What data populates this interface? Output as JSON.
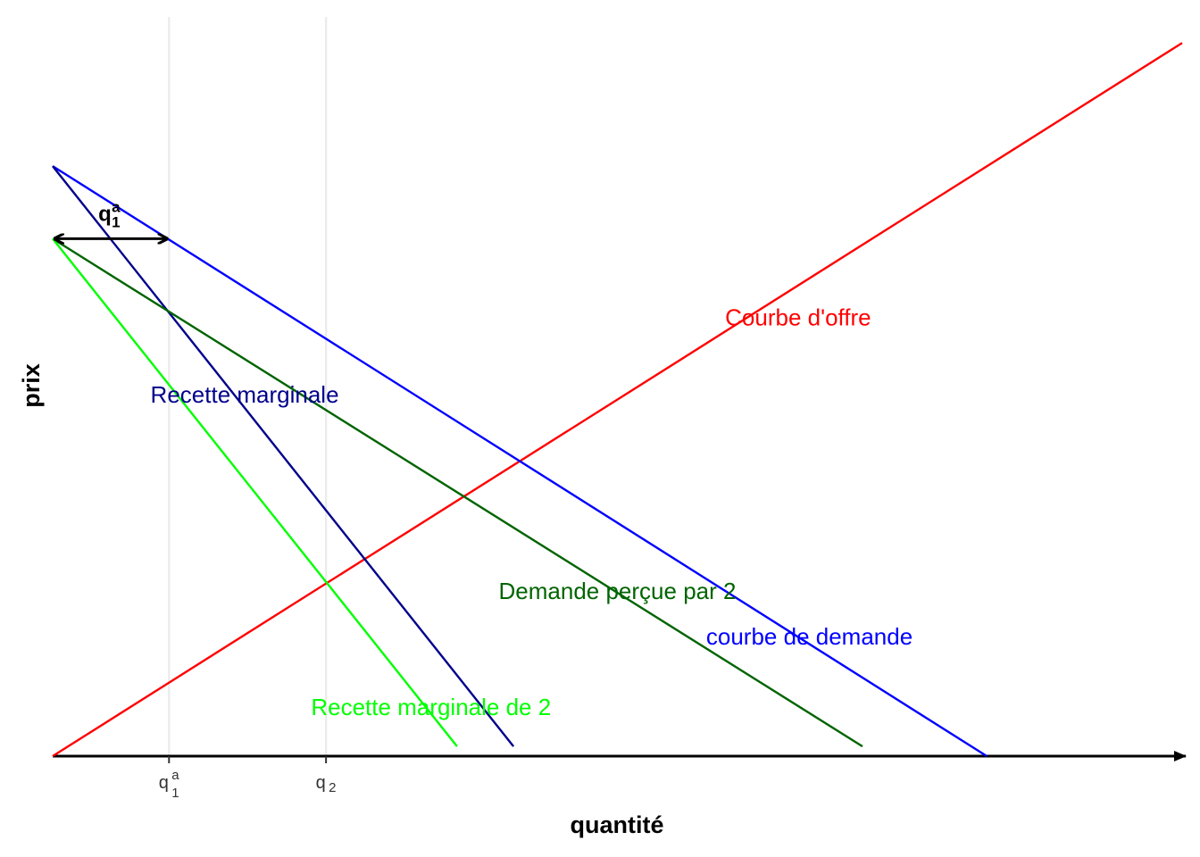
{
  "chart_data": {
    "type": "line",
    "title": "",
    "xlabel": "quantité",
    "ylabel": "prix",
    "xlim": [
      0,
      10
    ],
    "ylim": [
      0,
      11.4
    ],
    "grid": "vertical lines at q1a and q2",
    "x_ticks": [
      {
        "x": 1.03,
        "base": "q",
        "sub": "1",
        "sup": "a"
      },
      {
        "x": 2.42,
        "base": "q",
        "sub": "2",
        "sup": ""
      }
    ],
    "series": [
      {
        "name": "Courbe d'offre",
        "color": "#ff0000",
        "x": [
          0,
          10
        ],
        "y": [
          0,
          11
        ]
      },
      {
        "name": "courbe de demande",
        "color": "#0000ff",
        "x": [
          0,
          8.27
        ],
        "y": [
          9.1,
          0
        ]
      },
      {
        "name": "Recette marginale",
        "color": "#00008b",
        "x": [
          0,
          4.08
        ],
        "y": [
          9.1,
          0.15
        ]
      },
      {
        "name": "Demande perçue par 2",
        "color": "#006400",
        "x": [
          0,
          7.17
        ],
        "y": [
          7.98,
          0.15
        ]
      },
      {
        "name": "Recette marginale de 2",
        "color": "#00ff00",
        "x": [
          0,
          3.58
        ],
        "y": [
          7.98,
          0.15
        ]
      }
    ],
    "annotations": [
      {
        "type": "double-arrow",
        "x": [
          0,
          1.03
        ],
        "y": 7.98,
        "label_base": "q",
        "label_sub": "1",
        "label_sup": "a"
      }
    ]
  }
}
